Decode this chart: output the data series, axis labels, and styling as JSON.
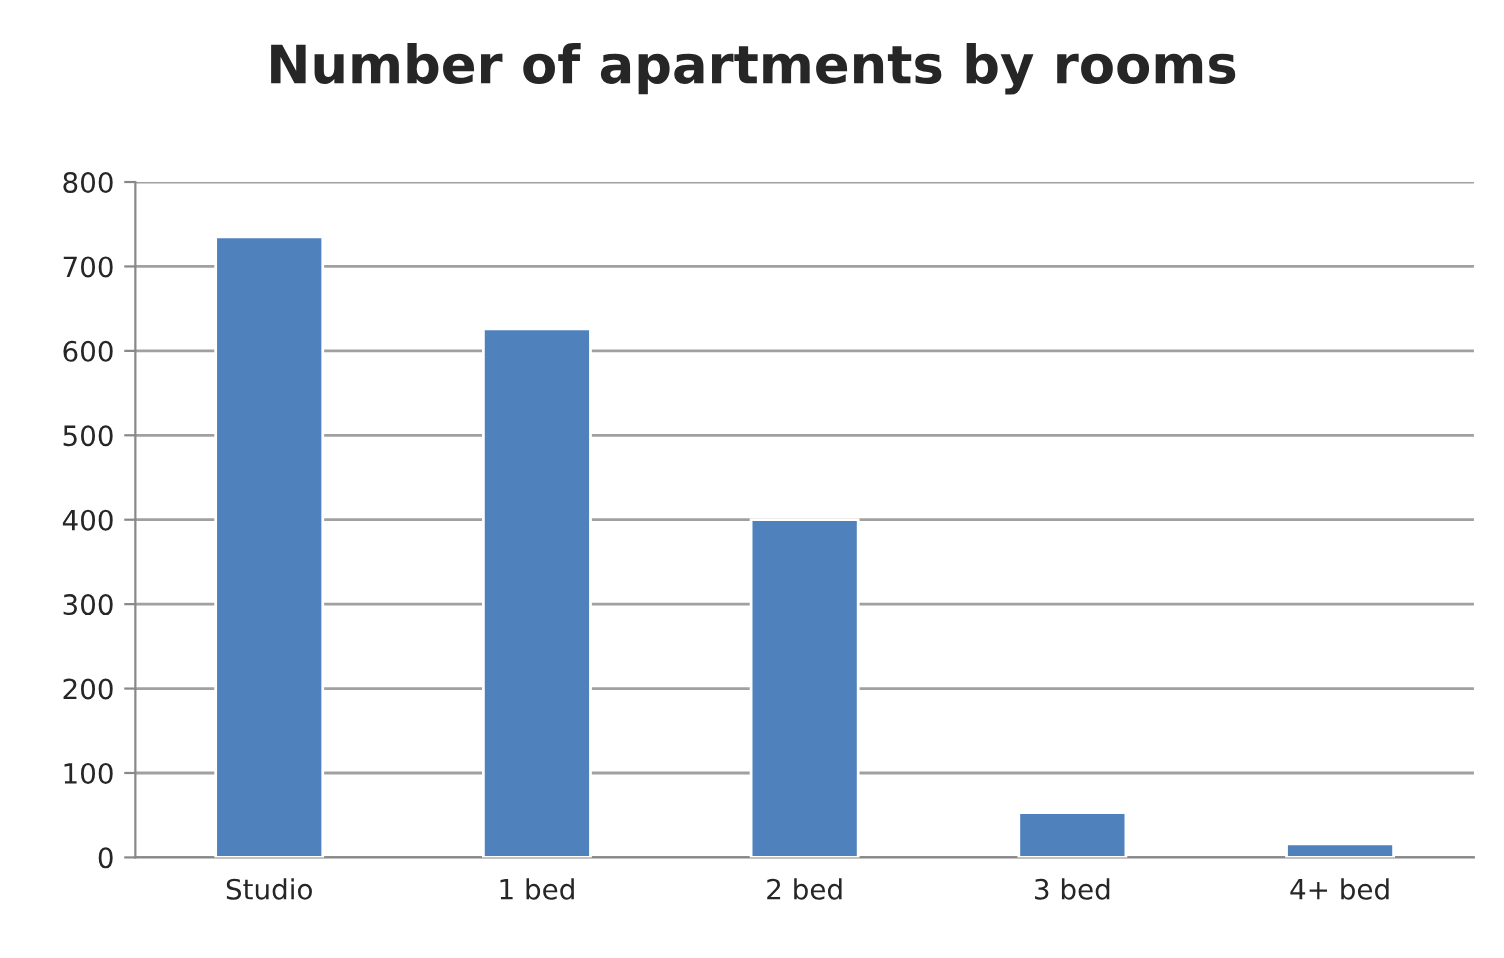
{
  "chart_data": {
    "type": "bar",
    "title": "Number of apartments by rooms",
    "categories": [
      "Studio",
      "1 bed",
      "2 bed",
      "3 bed",
      "4+ bed"
    ],
    "values": [
      735,
      626,
      400,
      53,
      16
    ],
    "color": "#4f81bd",
    "ylim": [
      0,
      800
    ],
    "yticks": [
      0,
      100,
      200,
      300,
      400,
      500,
      600,
      700,
      800
    ],
    "grid": "y",
    "legend": false
  }
}
